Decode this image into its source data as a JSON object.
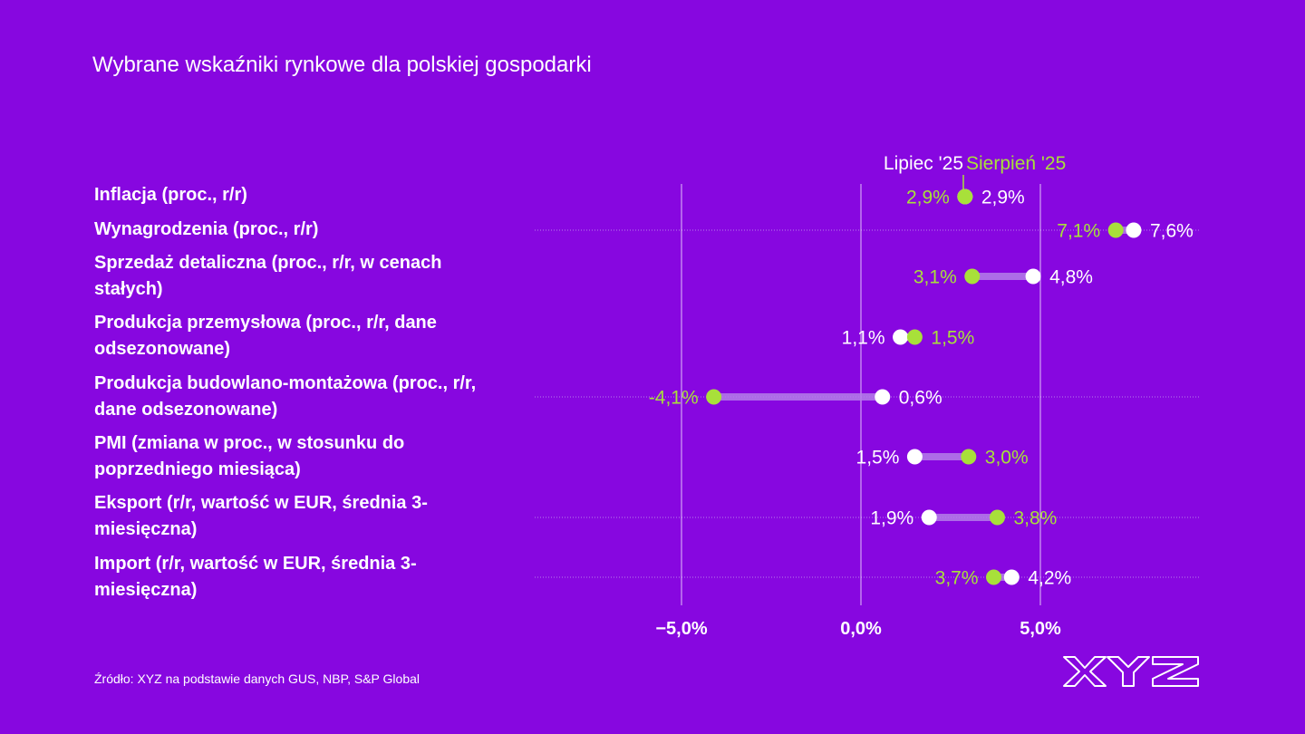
{
  "title": "Wybrane wskaźniki rynkowe dla polskiej gospodarki",
  "source": "Źródło: XYZ na podstawie danych GUS, NBP, S&P Global",
  "logo_text": "XYZ",
  "colors": {
    "background": "#8707e0",
    "lipiec": "#ffffff",
    "sierpien": "#a8e03a",
    "connector": "#b47ee8"
  },
  "chart_data": {
    "type": "dumbbell",
    "legend": [
      "Lipiec '25",
      "Sierpień '25"
    ],
    "legend_placement": "top",
    "categories": [
      "Inflacja (proc., r/r)",
      "Wynagrodzenia (proc., r/r)",
      "Sprzedaż detaliczna (proc., r/r, w cenach stałych)",
      "Produkcja przemysłowa (proc., r/r, dane odsezonowane)",
      "Produkcja budowlano-montażowa (proc., r/r, dane odsezonowane)",
      "PMI (zmiana w proc., w stosunku do poprzedniego miesiąca)",
      "Eksport (r/r, wartość w EUR, średnia 3-miesięczna)",
      "Import (r/r, wartość w EUR, średnia 3-miesięczna)"
    ],
    "series": [
      {
        "name": "Lipiec '25",
        "values": [
          2.9,
          7.6,
          4.8,
          1.1,
          0.6,
          1.5,
          1.9,
          4.2
        ],
        "labels": [
          "2,9%",
          "7,6%",
          "4,8%",
          "1,1%",
          "0,6%",
          "1,5%",
          "1,9%",
          "4,2%"
        ]
      },
      {
        "name": "Sierpień '25",
        "values": [
          2.9,
          7.1,
          3.1,
          1.5,
          -4.1,
          3.0,
          3.8,
          3.7
        ],
        "labels": [
          "2,9%",
          "7,1%",
          "3,1%",
          "1,5%",
          "-4,1%",
          "3,0%",
          "3,8%",
          "3,7%"
        ]
      }
    ],
    "x_ticks": [
      -5,
      0,
      5
    ],
    "x_tick_labels": [
      "−5,0%",
      "0,0%",
      "5,0%"
    ],
    "xlim": [
      -9.0,
      9.3
    ],
    "grid": true
  }
}
